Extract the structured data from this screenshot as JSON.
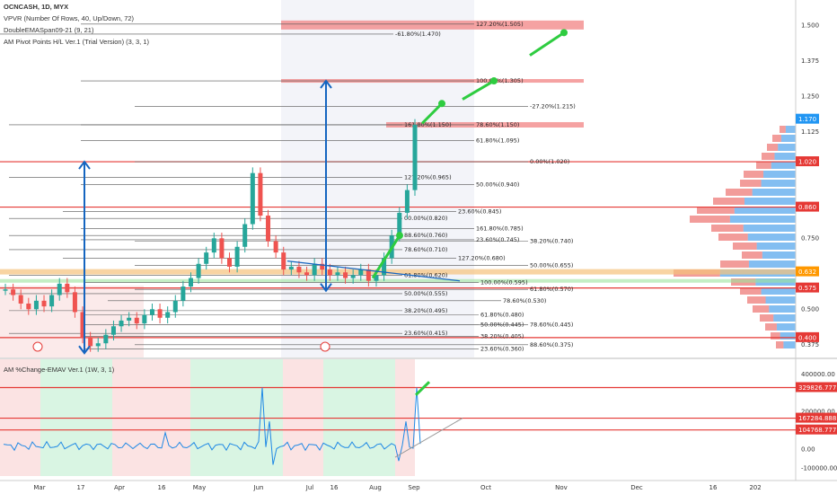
{
  "header": {
    "title": "OCNCASH, 1D, MYX",
    "indicators": [
      "VPVR (Number Of Rows, 40, Up/Down, 72)",
      "DoubleEMASpan09-21 (9, 21)",
      "AM Pivot Points H/L Ver.1 (Trial Version) (3, 3, 1)"
    ],
    "sub_indicator": "AM %Change-EMAV Ver.1 (1W, 3, 1)"
  },
  "colors": {
    "up": "#26a69a",
    "down": "#ef5350",
    "level_red": "#e53935",
    "arrow_blue": "#1565c0",
    "arrow_green": "#2ecc40",
    "vp_blue": "#1e88e5",
    "vp_red": "#e53935"
  },
  "chart_data": [
    {
      "type": "candlestick",
      "title": "OCNCASH, 1D, MYX",
      "x_ticks": [
        "Mar",
        "17",
        "Apr",
        "16",
        "May",
        "Jun",
        "Jul",
        "16",
        "Aug",
        "Sep",
        "Oct",
        "Nov",
        "Dec",
        "16",
        "202"
      ],
      "y_ticks": [
        1.5,
        1.375,
        1.25,
        1.125,
        0.75,
        0.5,
        0.375
      ],
      "ylim": [
        0.33,
        1.59
      ],
      "price_labels": [
        {
          "value": 1.17,
          "label": "1.170",
          "color": "#2196f3"
        },
        {
          "value": 1.02,
          "label": "1.020",
          "color": "#e53935"
        },
        {
          "value": 0.86,
          "label": "0.860",
          "color": "#e53935"
        },
        {
          "value": 0.632,
          "label": "0.632",
          "color": "#ff9800"
        },
        {
          "value": 0.575,
          "label": "0.575",
          "color": "#e53935"
        },
        {
          "value": 0.4,
          "label": "0.400",
          "color": "#e53935"
        }
      ],
      "closes": [
        0.57,
        0.55,
        0.52,
        0.5,
        0.53,
        0.51,
        0.55,
        0.59,
        0.56,
        0.49,
        0.4,
        0.37,
        0.38,
        0.41,
        0.44,
        0.46,
        0.47,
        0.45,
        0.48,
        0.5,
        0.47,
        0.49,
        0.53,
        0.58,
        0.61,
        0.66,
        0.7,
        0.75,
        0.68,
        0.65,
        0.72,
        0.8,
        0.98,
        0.83,
        0.74,
        0.7,
        0.64,
        0.65,
        0.63,
        0.62,
        0.66,
        0.64,
        0.62,
        0.63,
        0.61,
        0.62,
        0.64,
        0.6,
        0.62,
        0.68,
        0.76,
        0.84,
        0.92,
        1.15
      ],
      "fib_levels": [
        {
          "label": "127.20%(1.505)",
          "value": 1.505
        },
        {
          "label": "-61.80%(1.470)",
          "value": 1.47
        },
        {
          "label": "100.00%(1.305)",
          "value": 1.305
        },
        {
          "label": "-27.20%(1.215)",
          "value": 1.215
        },
        {
          "label": "161.80%(1.150)",
          "value": 1.15
        },
        {
          "label": "78.60%(1.150)",
          "value": 1.15
        },
        {
          "label": "61.80%(1.095)",
          "value": 1.095
        },
        {
          "label": "0.00%(1.020)",
          "value": 1.02
        },
        {
          "label": "127.20%(0.965)",
          "value": 0.965
        },
        {
          "label": "50.00%(0.940)",
          "value": 0.94
        },
        {
          "label": "23.60%(0.845)",
          "value": 0.845
        },
        {
          "label": "00.00%(0.820)",
          "value": 0.82
        },
        {
          "label": "161.80%(0.785)",
          "value": 0.785
        },
        {
          "label": "88.60%(0.760)",
          "value": 0.76
        },
        {
          "label": "23.60%(0.745)",
          "value": 0.745
        },
        {
          "label": "38.20%(0.740)",
          "value": 0.74
        },
        {
          "label": "78.60%(0.710)",
          "value": 0.71
        },
        {
          "label": "127.20%(0.680)",
          "value": 0.68
        },
        {
          "label": "50.00%(0.655)",
          "value": 0.655
        },
        {
          "label": "61.80%(0.620)",
          "value": 0.62
        },
        {
          "label": "100.00%(0.595)",
          "value": 0.595
        },
        {
          "label": "61.80%(0.570)",
          "value": 0.57
        },
        {
          "label": "50.00%(0.555)",
          "value": 0.555
        },
        {
          "label": "78.60%(0.530)",
          "value": 0.53
        },
        {
          "label": "38.20%(0.495)",
          "value": 0.495
        },
        {
          "label": "61.80%(0.480)",
          "value": 0.48
        },
        {
          "label": "50.00%(0.445)",
          "value": 0.445
        },
        {
          "label": "78.60%(0.445)",
          "value": 0.445
        },
        {
          "label": "23.60%(0.415)",
          "value": 0.415
        },
        {
          "label": "38.20%(0.405)",
          "value": 0.405
        },
        {
          "label": "23.60%(0.360)",
          "value": 0.36
        },
        {
          "label": "88.60%(0.375)",
          "value": 0.375
        }
      ]
    },
    {
      "type": "line",
      "title": "AM %Change-EMAV Ver.1 (1W, 3, 1)",
      "y_ticks": [
        400000.0,
        200000.0,
        0.0,
        -100000.0
      ],
      "y_tick_labels": [
        "400000.00",
        "200000.00",
        "0.00",
        "-100000.00"
      ],
      "ylim": [
        -140000,
        480000
      ],
      "levels": [
        {
          "value": 329826.777,
          "label": "329826.777"
        },
        {
          "value": 167284.888,
          "label": "167284.888"
        },
        {
          "value": 104768.777,
          "label": "104768.777"
        }
      ]
    }
  ]
}
